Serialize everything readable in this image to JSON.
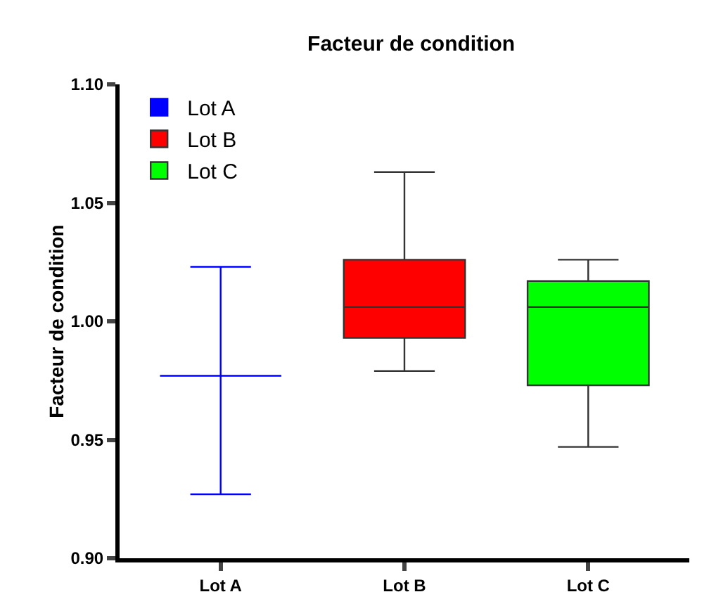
{
  "chart_data": {
    "type": "box",
    "title": "Facteur de condition",
    "ylabel": "Facteur de condition",
    "categories": [
      "Lot A",
      "Lot B",
      "Lot C"
    ],
    "series": [
      {
        "name": "Lot A",
        "color": "#0000ff",
        "x": [
          "Lot A"
        ],
        "boxes": [
          {
            "low": 0.927,
            "q1": 0.977,
            "median": 0.977,
            "q3": 0.977,
            "high": 1.023
          }
        ]
      },
      {
        "name": "Lot B",
        "color": "#ff0000",
        "x": [
          "Lot B"
        ],
        "boxes": [
          {
            "low": 0.979,
            "q1": 0.993,
            "median": 1.006,
            "q3": 1.026,
            "high": 1.063
          }
        ]
      },
      {
        "name": "Lot C",
        "color": "#00ff00",
        "x": [
          "Lot C"
        ],
        "boxes": [
          {
            "low": 0.947,
            "q1": 0.973,
            "median": 1.006,
            "q3": 1.017,
            "high": 1.026
          }
        ]
      }
    ],
    "ylim": [
      0.9,
      1.1
    ],
    "yticks": [
      {
        "value": 0.9,
        "label": "0.90"
      },
      0.95,
      {
        "value": 1.0,
        "label": "1.00"
      },
      1.05,
      {
        "value": 1.1,
        "label": "1.10"
      }
    ],
    "grid": false,
    "legend": "top left"
  }
}
